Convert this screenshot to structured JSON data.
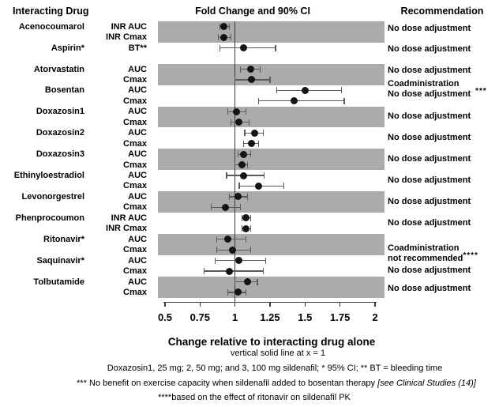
{
  "header": {
    "interacting_drug": "Interacting Drug",
    "fold_change": "Fold Change and 90% CI",
    "recommendation": "Recommendation"
  },
  "chart_data": {
    "type": "forest",
    "title": "Fold Change and 90% CI",
    "xlabel": "Change relative to interacting drug alone",
    "xlim": [
      0.5,
      2
    ],
    "x_ticks": [
      "0.5",
      "0.75",
      "1",
      "1.25",
      "1.5",
      "1.75",
      "2"
    ],
    "reference_line_x": 1,
    "ci_level": "90% CI",
    "drugs": [
      {
        "name": "Acenocoumarol",
        "shaded": true,
        "recommendation": [
          {
            "text": "No dose adjustment"
          }
        ],
        "rows": [
          {
            "param": "INR AUC",
            "value": 0.92,
            "lo": 0.89,
            "hi": 0.96
          },
          {
            "param": "INR Cmax",
            "value": 0.92,
            "lo": 0.88,
            "hi": 0.97
          }
        ]
      },
      {
        "name": "Aspirin*",
        "shaded": false,
        "recommendation": [
          {
            "text": "No dose adjustment"
          }
        ],
        "rows": [
          {
            "param": "BT**",
            "value": 1.06,
            "lo": 0.89,
            "hi": 1.29
          }
        ]
      },
      {
        "name": "Atorvastatin",
        "shaded": true,
        "recommendation": [
          {
            "text": "No dose adjustment"
          }
        ],
        "rows": [
          {
            "param": "AUC",
            "value": 1.11,
            "lo": 1.04,
            "hi": 1.18
          },
          {
            "param": "Cmax",
            "value": 1.12,
            "lo": 1.0,
            "hi": 1.25
          }
        ]
      },
      {
        "name": "Bosentan",
        "shaded": false,
        "recommendation": [
          {
            "text": "Coadministration"
          },
          {
            "text": "No dose adjustment",
            "sup": "***",
            "gap": true
          }
        ],
        "rows": [
          {
            "param": "AUC",
            "value": 1.5,
            "lo": 1.3,
            "hi": 1.76
          },
          {
            "param": "Cmax",
            "value": 1.42,
            "lo": 1.17,
            "hi": 1.78
          }
        ]
      },
      {
        "name": "Doxazosin1",
        "shaded": true,
        "recommendation": [
          {
            "text": "No dose adjustment"
          }
        ],
        "rows": [
          {
            "param": "AUC",
            "value": 1.01,
            "lo": 0.95,
            "hi": 1.08
          },
          {
            "param": "Cmax",
            "value": 1.03,
            "lo": 0.97,
            "hi": 1.1
          }
        ]
      },
      {
        "name": "Doxazosin2",
        "shaded": false,
        "recommendation": [
          {
            "text": "No dose adjustment"
          }
        ],
        "rows": [
          {
            "param": "AUC",
            "value": 1.14,
            "lo": 1.07,
            "hi": 1.2
          },
          {
            "param": "Cmax",
            "value": 1.12,
            "lo": 1.06,
            "hi": 1.17
          }
        ]
      },
      {
        "name": "Doxazosin3",
        "shaded": true,
        "recommendation": [
          {
            "text": "No dose adjustment"
          }
        ],
        "rows": [
          {
            "param": "AUC",
            "value": 1.06,
            "lo": 1.02,
            "hi": 1.11
          },
          {
            "param": "Cmax",
            "value": 1.05,
            "lo": 1.0,
            "hi": 1.09
          }
        ]
      },
      {
        "name": "Ethinyloestradiol",
        "shaded": false,
        "recommendation": [
          {
            "text": "No dose adjustment"
          }
        ],
        "rows": [
          {
            "param": "AUC",
            "value": 1.06,
            "lo": 0.94,
            "hi": 1.21
          },
          {
            "param": "Cmax",
            "value": 1.17,
            "lo": 1.03,
            "hi": 1.35
          }
        ]
      },
      {
        "name": "Levonorgestrel",
        "shaded": true,
        "recommendation": [
          {
            "text": "No dose adjustment"
          }
        ],
        "rows": [
          {
            "param": "AUC",
            "value": 1.02,
            "lo": 0.96,
            "hi": 1.09
          },
          {
            "param": "Cmax",
            "value": 0.93,
            "lo": 0.83,
            "hi": 1.04
          }
        ]
      },
      {
        "name": "Phenprocoumon",
        "shaded": false,
        "recommendation": [
          {
            "text": "No dose adjustment"
          }
        ],
        "rows": [
          {
            "param": "INR AUC",
            "value": 1.08,
            "lo": 1.05,
            "hi": 1.11
          },
          {
            "param": "INR Cmax",
            "value": 1.08,
            "lo": 1.05,
            "hi": 1.11
          }
        ]
      },
      {
        "name": "Ritonavir*",
        "shaded": true,
        "recommendation": [
          {
            "text": "Coadministration"
          },
          {
            "text": "not recommended",
            "sup": "****",
            "gap": false
          }
        ],
        "rows": [
          {
            "param": "AUC",
            "value": 0.95,
            "lo": 0.87,
            "hi": 1.08
          },
          {
            "param": "Cmax",
            "value": 0.98,
            "lo": 0.87,
            "hi": 1.11
          }
        ]
      },
      {
        "name": "Saquinavir*",
        "shaded": false,
        "recommendation": [
          {
            "text": "No dose adjustment"
          }
        ],
        "rows": [
          {
            "param": "AUC",
            "value": 1.03,
            "lo": 0.86,
            "hi": 1.22
          },
          {
            "param": "Cmax",
            "value": 0.96,
            "lo": 0.78,
            "hi": 1.2
          }
        ]
      },
      {
        "name": "Tolbutamide",
        "shaded": true,
        "recommendation": [
          {
            "text": "No dose adjustment"
          }
        ],
        "rows": [
          {
            "param": "AUC",
            "value": 1.09,
            "lo": 1.0,
            "hi": 1.16
          },
          {
            "param": "Cmax",
            "value": 1.02,
            "lo": 0.95,
            "hi": 1.08
          }
        ]
      }
    ]
  },
  "footnotes": {
    "note1": "vertical solid line at x = 1",
    "note2": "Doxazosin1, 25 mg; 2, 50 mg; and 3, 100 mg sildenafil; * 95% CI; ** BT = bleeding time",
    "note3_pre": "*** No benefit on exercise capacity when sildenafil added to bosentan therapy ",
    "note3_italic": "[see Clinical Studies (14)]",
    "note4": "****based on the effect of ritonavir on sildenafil PK"
  },
  "colors": {
    "band": "#ababab",
    "dot": "#141414",
    "ci": "#5a5a5a",
    "axis": "#3a3a3a"
  }
}
